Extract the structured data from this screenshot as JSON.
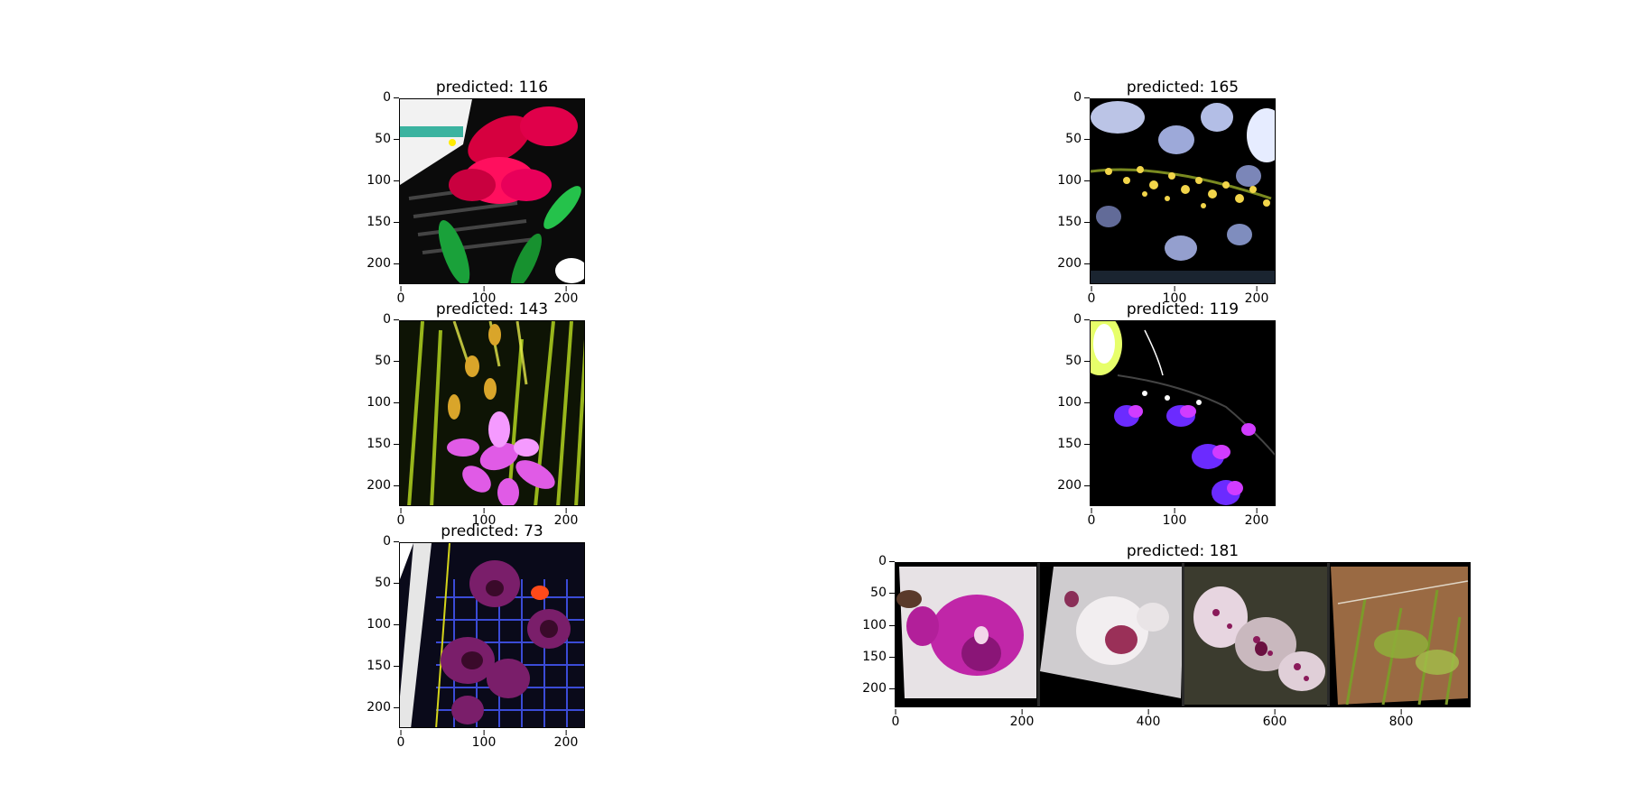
{
  "panels": [
    {
      "id": "p1",
      "title": "predicted: 116",
      "yticks": [
        "0",
        "50",
        "100",
        "150",
        "200"
      ],
      "xticks": [
        "0",
        "100",
        "200"
      ],
      "image": "red-orchid-on-plant-tray",
      "colors": [
        "#000000",
        "#e0004a",
        "#1aa13a",
        "#ffffff"
      ]
    },
    {
      "id": "p2",
      "title": "predicted: 165",
      "yticks": [
        "0",
        "50",
        "100",
        "150",
        "200"
      ],
      "xticks": [
        "0",
        "100",
        "200"
      ],
      "image": "yellow-flower-spray-on-dark-bokeh",
      "colors": [
        "#000000",
        "#f2d54a",
        "#cfd9ff"
      ]
    },
    {
      "id": "p3",
      "title": "predicted: 143",
      "yticks": [
        "0",
        "50",
        "100",
        "150",
        "200"
      ],
      "xticks": [
        "0",
        "100",
        "200"
      ],
      "image": "pink-orchids-in-grass",
      "colors": [
        "#000000",
        "#e05be6",
        "#a8c81e"
      ]
    },
    {
      "id": "p4",
      "title": "predicted: 119",
      "yticks": [
        "0",
        "50",
        "100",
        "150",
        "200"
      ],
      "xticks": [
        "0",
        "100",
        "200"
      ],
      "image": "purple-orchid-spray-on-black",
      "colors": [
        "#000000",
        "#6b2bff",
        "#d13cff"
      ]
    },
    {
      "id": "p5",
      "title": "predicted: 73",
      "yticks": [
        "0",
        "50",
        "100",
        "150",
        "200"
      ],
      "xticks": [
        "0",
        "100",
        "200"
      ],
      "image": "dark-purple-orchids-on-grate",
      "colors": [
        "#000000",
        "#7a1e6a",
        "#3b4bd6"
      ]
    },
    {
      "id": "p6",
      "title": "predicted: 181",
      "yticks": [
        "0",
        "50",
        "100",
        "150",
        "200"
      ],
      "xticks": [
        "0",
        "200",
        "400",
        "600",
        "800"
      ],
      "image": "grid-of-four-orchid-photos",
      "colors": [
        "#000000",
        "#c026a8",
        "#e7e2e5",
        "#9a6a43",
        "#c9b8be"
      ]
    }
  ]
}
